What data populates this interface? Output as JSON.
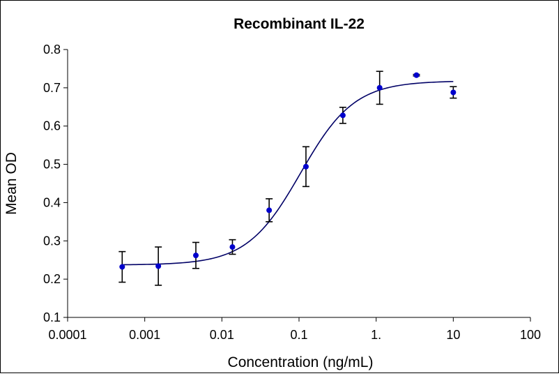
{
  "chart_data": {
    "type": "scatter",
    "title": "Recombinant IL-22",
    "xlabel": "Concentration (ng/mL)",
    "ylabel": "Mean OD",
    "xscale": "log",
    "xlim": [
      0.0001,
      100
    ],
    "ylim": [
      0.1,
      0.8
    ],
    "x_tick_values": [
      0.0001,
      0.001,
      0.01,
      0.1,
      1,
      10,
      100
    ],
    "x_tick_labels": [
      "0.0001",
      "0.001",
      "0.01",
      "0.1",
      "1.",
      "10",
      "100"
    ],
    "y_tick_values": [
      0.1,
      0.2,
      0.3,
      0.4,
      0.5,
      0.6,
      0.7,
      0.8
    ],
    "y_tick_labels": [
      "0.1",
      "0.2",
      "0.3",
      "0.4",
      "0.5",
      "0.6",
      "0.7",
      "0.8"
    ],
    "grid": false,
    "legend": "none",
    "points": [
      {
        "x": 0.00051,
        "y": 0.232,
        "err": 0.04
      },
      {
        "x": 0.0015,
        "y": 0.234,
        "err": 0.05
      },
      {
        "x": 0.0046,
        "y": 0.262,
        "err": 0.034
      },
      {
        "x": 0.0137,
        "y": 0.284,
        "err": 0.019
      },
      {
        "x": 0.041,
        "y": 0.38,
        "err": 0.03
      },
      {
        "x": 0.123,
        "y": 0.494,
        "err": 0.052
      },
      {
        "x": 0.37,
        "y": 0.628,
        "err": 0.021
      },
      {
        "x": 1.11,
        "y": 0.7,
        "err": 0.043
      },
      {
        "x": 3.33,
        "y": 0.733,
        "err": 0.002
      },
      {
        "x": 10,
        "y": 0.688,
        "err": 0.015
      }
    ],
    "fit": {
      "model": "4PL",
      "bottom": 0.237,
      "top": 0.718,
      "ec50": 0.105,
      "hill": 1.25,
      "x_from": 0.00051,
      "x_to": 10
    },
    "colors": {
      "points": "#0000cc",
      "fit_line": "#000066",
      "error_bars": "#000000",
      "axes": "#000000"
    }
  }
}
